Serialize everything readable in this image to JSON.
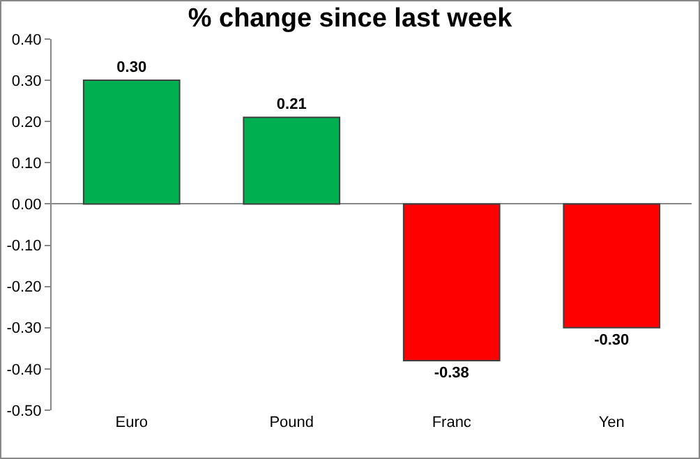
{
  "chart_data": {
    "type": "bar",
    "title": "% change since last week",
    "categories": [
      "Euro",
      "Pound",
      "Franc",
      "Yen"
    ],
    "values": [
      0.3,
      0.21,
      -0.38,
      -0.3
    ],
    "value_labels": [
      "0.30",
      "0.21",
      "-0.38",
      "-0.30"
    ],
    "colors": [
      "#00b050",
      "#00b050",
      "#ff0000",
      "#ff0000"
    ],
    "ylim": [
      -0.5,
      0.4
    ],
    "yticks": [
      {
        "value": 0.4,
        "label": "0.40"
      },
      {
        "value": 0.3,
        "label": "0.30"
      },
      {
        "value": 0.2,
        "label": "0.20"
      },
      {
        "value": 0.1,
        "label": "0.10"
      },
      {
        "value": 0,
        "label": "0.00"
      },
      {
        "value": -0.1,
        "label": "-0.10"
      },
      {
        "value": -0.2,
        "label": "-0.20"
      },
      {
        "value": -0.3,
        "label": "-0.30"
      },
      {
        "value": -0.4,
        "label": "-0.40"
      },
      {
        "value": -0.5,
        "label": "-0.50"
      }
    ],
    "legend": false
  }
}
